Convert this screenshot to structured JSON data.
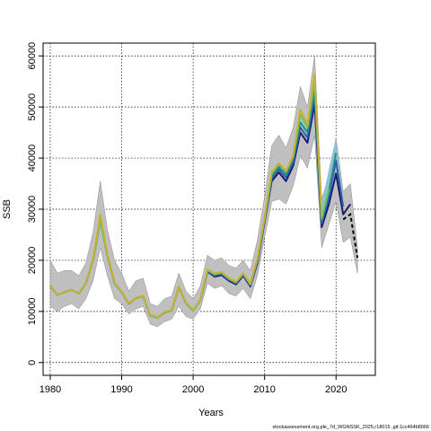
{
  "chart_data": {
    "type": "line",
    "xlabel": "Years",
    "ylabel": "SSB",
    "xlim": [
      1979,
      2025.5
    ],
    "ylim": [
      -2500,
      62500
    ],
    "x_ticks": [
      1980,
      1990,
      2000,
      2010,
      2020
    ],
    "y_ticks": [
      0,
      10000,
      20000,
      30000,
      40000,
      50000,
      60000
    ],
    "grid": "dotted",
    "footnote": "stockassessment.org,ple_7d_WGNSSK_2025,r18015 ,git:1cc464b8066",
    "colors": {
      "uncertainty_band": "#c0c0c0",
      "recent_band": "#87c0d8",
      "series_navy": "#1a1a6e",
      "series_blue": "#2f5fa8",
      "series_teal": "#21918c",
      "series_green": "#5ec962",
      "series_yellow": "#c9b030",
      "forecast": "#000000"
    },
    "band": {
      "x": [
        1980,
        1981,
        1982,
        1983,
        1984,
        1985,
        1986,
        1987,
        1988,
        1989,
        1990,
        1991,
        1992,
        1993,
        1994,
        1995,
        1996,
        1997,
        1998,
        1999,
        2000,
        2001,
        2002,
        2003,
        2004,
        2005,
        2006,
        2007,
        2008,
        2009,
        2010,
        2011,
        2012,
        2013,
        2014,
        2015,
        2016,
        2017,
        2018,
        2019,
        2020,
        2021,
        2022,
        2023
      ],
      "upper": [
        20000,
        17500,
        18000,
        18000,
        17000,
        19500,
        25500,
        35500,
        26000,
        20000,
        17500,
        14000,
        16000,
        16500,
        11500,
        11000,
        12500,
        13000,
        17500,
        14000,
        12500,
        15000,
        21000,
        20000,
        20500,
        19000,
        18500,
        20000,
        18000,
        24000,
        32500,
        42500,
        44500,
        42000,
        46000,
        54000,
        50000,
        60000,
        32000,
        36500,
        44000,
        33500,
        35000,
        22500
      ],
      "lower": [
        11000,
        10000,
        11000,
        11500,
        10500,
        12500,
        16000,
        22500,
        17000,
        12500,
        11500,
        9500,
        10500,
        11000,
        7500,
        7000,
        8000,
        8500,
        11000,
        9000,
        8500,
        10500,
        15500,
        14500,
        15000,
        13500,
        13000,
        14500,
        12500,
        17000,
        24500,
        31500,
        32000,
        31000,
        34500,
        40500,
        38000,
        44500,
        22500,
        27000,
        31500,
        23500,
        24500,
        17500
      ]
    },
    "recent_band": {
      "x": [
        2017,
        2018,
        2019,
        2020,
        2021
      ],
      "upper": [
        57500,
        31000,
        38000,
        44000,
        31000
      ],
      "lower": [
        52000,
        26500,
        33500,
        38000,
        28000
      ]
    },
    "series": [
      {
        "color": "#1a1a6e",
        "x": [
          1980,
          1981,
          1982,
          1983,
          1984,
          1985,
          1986,
          1987,
          1988,
          1989,
          1990,
          1991,
          1992,
          1993,
          1994,
          1995,
          1996,
          1997,
          1998,
          1999,
          2000,
          2001,
          2002,
          2003,
          2004,
          2005,
          2006,
          2007,
          2008,
          2009,
          2010,
          2011,
          2012,
          2013,
          2014,
          2015,
          2016,
          2017,
          2018,
          2019,
          2020,
          2021,
          2022
        ],
        "values": [
          15000,
          13200,
          13800,
          14200,
          13500,
          15500,
          20000,
          28000,
          21000,
          15500,
          13800,
          11500,
          12600,
          13000,
          9200,
          8800,
          9800,
          10200,
          14800,
          11600,
          10200,
          12200,
          17800,
          16800,
          17100,
          16000,
          15300,
          17000,
          14900,
          19500,
          27500,
          35500,
          37200,
          35500,
          38500,
          45000,
          43000,
          50500,
          26500,
          31000,
          37000,
          29000,
          31000
        ]
      },
      {
        "color": "#2f5fa8",
        "x": [
          1980,
          1981,
          1982,
          1983,
          1984,
          1985,
          1986,
          1987,
          1988,
          1989,
          1990,
          1991,
          1992,
          1993,
          1994,
          1995,
          1996,
          1997,
          1998,
          1999,
          2000,
          2001,
          2002,
          2003,
          2004,
          2005,
          2006,
          2007,
          2008,
          2009,
          2010,
          2011,
          2012,
          2013,
          2014,
          2015,
          2016,
          2017,
          2018,
          2019,
          2020,
          2021
        ],
        "values": [
          15000,
          13200,
          13800,
          14200,
          13500,
          15500,
          20000,
          28000,
          21000,
          15500,
          13800,
          11500,
          12600,
          13000,
          9200,
          8800,
          9800,
          10200,
          14800,
          11600,
          10200,
          12200,
          17900,
          17000,
          17300,
          16200,
          15500,
          17200,
          15100,
          19800,
          27800,
          36000,
          37800,
          36200,
          39200,
          46000,
          44000,
          52000,
          27200,
          32500,
          39500,
          30500
        ]
      },
      {
        "color": "#21918c",
        "x": [
          1980,
          1981,
          1982,
          1983,
          1984,
          1985,
          1986,
          1987,
          1988,
          1989,
          1990,
          1991,
          1992,
          1993,
          1994,
          1995,
          1996,
          1997,
          1998,
          1999,
          2000,
          2001,
          2002,
          2003,
          2004,
          2005,
          2006,
          2007,
          2008,
          2009,
          2010,
          2011,
          2012,
          2013,
          2014,
          2015,
          2016,
          2017,
          2018,
          2019,
          2020
        ],
        "values": [
          15000,
          13200,
          13800,
          14200,
          13500,
          15500,
          20000,
          28000,
          21000,
          15500,
          13800,
          11500,
          12600,
          13000,
          9200,
          8800,
          9800,
          10200,
          14800,
          11600,
          10200,
          12200,
          18000,
          17200,
          17500,
          16300,
          15600,
          17300,
          15200,
          20000,
          28000,
          36500,
          38300,
          36800,
          39800,
          47000,
          45000,
          53500,
          27800,
          33500,
          41000
        ]
      },
      {
        "color": "#5ec962",
        "x": [
          1980,
          1981,
          1982,
          1983,
          1984,
          1985,
          1986,
          1987,
          1988,
          1989,
          1990,
          1991,
          1992,
          1993,
          1994,
          1995,
          1996,
          1997,
          1998,
          1999,
          2000,
          2001,
          2002,
          2003,
          2004,
          2005,
          2006,
          2007,
          2008,
          2009,
          2010,
          2011,
          2012,
          2013,
          2014,
          2015,
          2016,
          2017,
          2018,
          2019
        ],
        "values": [
          15000,
          13200,
          13800,
          14200,
          13500,
          15500,
          20000,
          28000,
          21000,
          15500,
          13800,
          11500,
          12600,
          13000,
          9200,
          8800,
          9800,
          10200,
          14800,
          11600,
          10200,
          12200,
          18100,
          17300,
          17600,
          16400,
          15700,
          17400,
          15300,
          20200,
          28200,
          37000,
          38800,
          37300,
          40300,
          48500,
          46000,
          55000,
          28200,
          34000
        ]
      },
      {
        "color": "#c9b030",
        "x": [
          1980,
          1981,
          1982,
          1983,
          1984,
          1985,
          1986,
          1987,
          1988,
          1989,
          1990,
          1991,
          1992,
          1993,
          1994,
          1995,
          1996,
          1997,
          1998,
          1999,
          2000,
          2001,
          2002,
          2003,
          2004,
          2005,
          2006,
          2007,
          2008,
          2009,
          2010,
          2011,
          2012,
          2013,
          2014,
          2015,
          2016,
          2017,
          2018
        ],
        "values": [
          15000,
          13200,
          13800,
          14200,
          13500,
          15500,
          20000,
          29000,
          21200,
          15600,
          13900,
          11600,
          12700,
          13100,
          9300,
          8900,
          9900,
          10300,
          14900,
          11700,
          10300,
          12300,
          18200,
          17400,
          17700,
          16500,
          15800,
          17500,
          15400,
          20300,
          28300,
          37200,
          39000,
          37500,
          40500,
          49500,
          46500,
          56500,
          28500
        ]
      }
    ],
    "forecast": {
      "x": [
        2021,
        2022,
        2023
      ],
      "values": [
        28000,
        29000,
        20500
      ]
    }
  }
}
